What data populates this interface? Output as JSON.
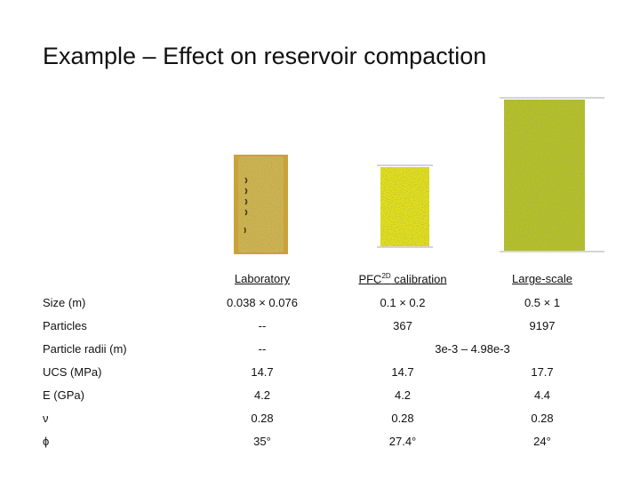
{
  "title": "Example – Effect on reservoir compaction",
  "table": {
    "headers": [
      [
        "Laboratory"
      ],
      [
        "PFC",
        "2D",
        " calibration"
      ],
      [
        "Large-scale"
      ]
    ],
    "rows": [
      {
        "label": "Size (m)",
        "values": [
          "0.038 × 0.076",
          "0.1 × 0.2",
          "0.5 × 1"
        ]
      },
      {
        "label": "Particles",
        "values": [
          "--",
          "367",
          "9197"
        ]
      },
      {
        "label": "Particle radii (m)",
        "values": [
          "--",
          "3e-3 – 4.98e-3"
        ]
      },
      {
        "label": "UCS (MPa)",
        "values": [
          "14.7",
          "14.7",
          "17.7"
        ]
      },
      {
        "label": "E (GPa)",
        "values": [
          "4.2",
          "4.2",
          "4.4"
        ]
      },
      {
        "label": "ν",
        "values": [
          "0.28",
          "0.28",
          "0.28"
        ]
      },
      {
        "label": "ϕ",
        "values": [
          "35°",
          "27.4°",
          "24°"
        ]
      }
    ]
  }
}
